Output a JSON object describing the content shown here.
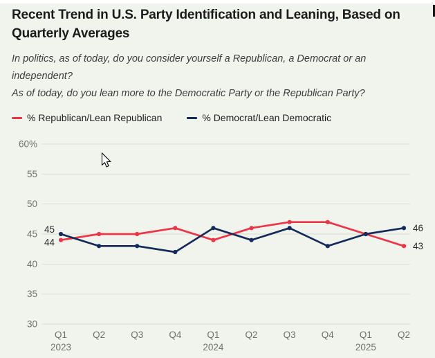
{
  "page": {
    "background": "#f0f4ec"
  },
  "header": {
    "title_lines": [
      "Recent Trend in U.S. Party Identification and Leaning, Based on",
      "Quarterly Averages"
    ],
    "questions": [
      "In politics, as of today, do you consider yourself a Republican, a Democrat or an independent?",
      "As of today, do you lean more to the Democratic Party or the Republican Party?"
    ]
  },
  "legend": [
    {
      "label": "% Republican/Lean Republican",
      "color": "#ee3445"
    },
    {
      "label": "% Democrat/Lean Democratic",
      "color": "#132a5a"
    }
  ],
  "icons": {
    "mouse_cursor": "arrow-pointer"
  },
  "chart_data": {
    "type": "line",
    "title": "Recent Trend in U.S. Party Identification and Leaning, Based on Quarterly Averages",
    "subtitle": "In politics, as of today, do you consider yourself a Republican, a Democrat or an independent? As of today, do you lean more to the Democratic Party or the Republican Party?",
    "categories": [
      "Q1 2023",
      "Q2 2023",
      "Q3 2023",
      "Q4 2023",
      "Q1 2024",
      "Q2 2024",
      "Q3 2024",
      "Q4 2024",
      "Q1 2025",
      "Q2 2025"
    ],
    "x_tick_labels": [
      "Q1",
      "Q2",
      "Q3",
      "Q4",
      "Q1",
      "Q2",
      "Q3",
      "Q4",
      "Q1",
      "Q2"
    ],
    "x_year_labels": [
      {
        "index": 0,
        "label": "2023"
      },
      {
        "index": 4,
        "label": "2024"
      },
      {
        "index": 8,
        "label": "2025"
      }
    ],
    "series": [
      {
        "name": "% Republican/Lean Republican",
        "color": "#ee3445",
        "values": [
          44,
          45,
          45,
          46,
          44,
          46,
          47,
          47,
          45,
          43
        ],
        "start_label": "44",
        "end_label": "43"
      },
      {
        "name": "% Democrat/Lean Democratic",
        "color": "#132a5a",
        "values": [
          45,
          43,
          43,
          42,
          46,
          44,
          46,
          43,
          45,
          46
        ],
        "start_label": "45",
        "end_label": "46"
      }
    ],
    "xlabel": "",
    "ylabel": "",
    "ylim": [
      30,
      60
    ],
    "y_ticks": [
      30,
      35,
      40,
      45,
      50,
      55,
      60
    ],
    "y_tick_labels": [
      "30",
      "35",
      "40",
      "45",
      "50",
      "55",
      "60%"
    ],
    "grid": true,
    "grid_color": "#d9ddd2",
    "tick_color": "#6e7268",
    "point_label_color": "#2b2b2b",
    "legend_position": "top"
  }
}
